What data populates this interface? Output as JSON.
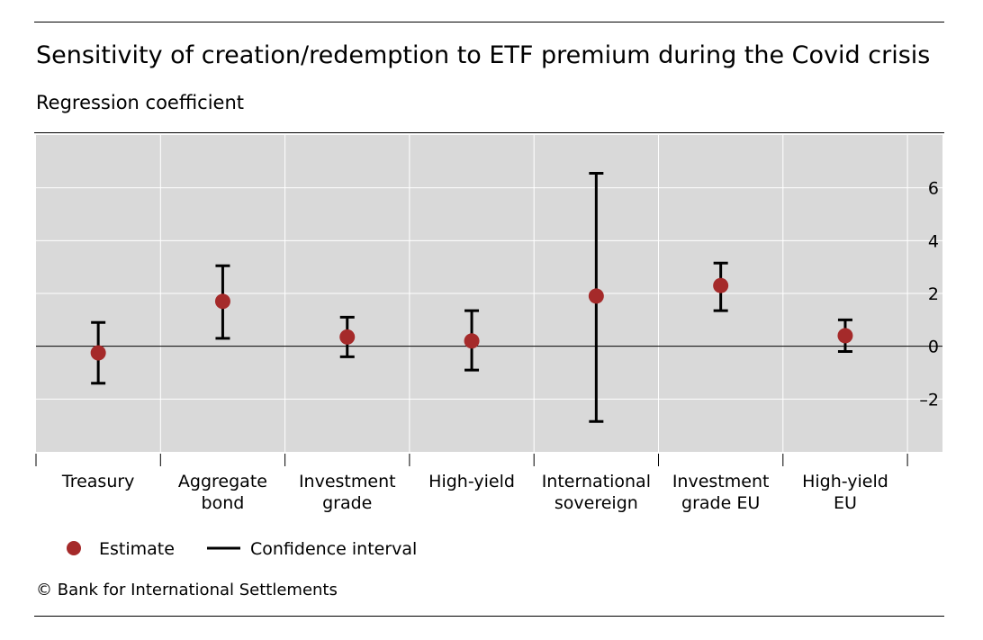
{
  "header": {
    "title": "Sensitivity of creation/redemption to ETF premium during the Covid crisis",
    "subtitle": "Regression coefficient"
  },
  "footer": {
    "source": "© Bank for International Settlements"
  },
  "chart_data": {
    "type": "scatter",
    "title": "Sensitivity of creation/redemption to ETF premium during the Covid crisis",
    "subtitle": "Regression coefficient",
    "categories": [
      "Treasury",
      "Aggregate bond",
      "Investment grade",
      "High-yield",
      "International sovereign",
      "Investment grade EU",
      "High-yield EU"
    ],
    "category_lines": [
      [
        "Treasury"
      ],
      [
        "Aggregate",
        "bond"
      ],
      [
        "Investment",
        "grade"
      ],
      [
        "High-yield"
      ],
      [
        "International",
        "sovereign"
      ],
      [
        "Investment",
        "grade EU"
      ],
      [
        "High-yield",
        "EU"
      ]
    ],
    "series": [
      {
        "name": "Estimate",
        "values": [
          -0.25,
          1.7,
          0.35,
          0.2,
          1.9,
          2.3,
          0.4
        ]
      },
      {
        "name": "Confidence interval",
        "lower": [
          -1.4,
          0.3,
          -0.4,
          -0.9,
          -2.85,
          1.35,
          -0.2
        ],
        "upper": [
          0.9,
          3.05,
          1.1,
          1.35,
          6.55,
          3.15,
          1.0
        ]
      }
    ],
    "ylim": [
      -4,
      8
    ],
    "yticks": [
      -2,
      0,
      2,
      4,
      6
    ],
    "ytick_labels": [
      "–2",
      "0",
      "2",
      "4",
      "6"
    ],
    "y_axis_side": "right",
    "grid": true,
    "legend": {
      "position": "bottom-left",
      "estimate_label": "Estimate",
      "ci_label": "Confidence interval"
    },
    "colors": {
      "estimate": "#a52a2a",
      "ci": "#000000",
      "panel": "#d9d9d9",
      "grid": "#ffffff"
    }
  }
}
